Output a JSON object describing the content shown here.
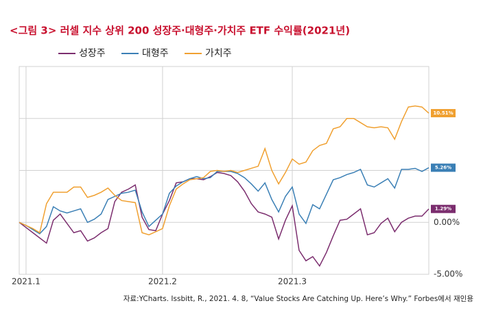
{
  "chart_data": {
    "type": "line",
    "title": "<그림 3> 러셀 지수 상위 200 성장주·대형주·가치주 ETF 수익률(2021년)",
    "source": "자료:YCharts. Issbitt, R., 2021. 4. 8, “Value Stocks Are Catching Up. Here’s  Why.” Forbes에서 재인용",
    "categories": [
      null,
      "2021.1",
      null,
      null,
      null,
      null,
      null,
      null,
      null,
      null,
      null,
      null,
      null,
      null,
      null,
      null,
      null,
      null,
      null,
      null,
      null,
      "2021.2",
      null,
      null,
      null,
      null,
      null,
      null,
      null,
      null,
      null,
      null,
      null,
      null,
      null,
      null,
      null,
      null,
      null,
      null,
      "2021.3",
      null,
      null,
      null,
      null,
      null,
      null,
      null,
      null,
      null,
      null,
      null,
      null,
      null,
      null,
      null,
      null,
      null,
      null,
      null,
      null
    ],
    "ylim": [
      -5,
      15
    ],
    "yticks": [
      {
        "value": -5,
        "label": "-5.00%"
      },
      {
        "value": 0,
        "label": "0.00%"
      }
    ],
    "ygrid": [
      5,
      10
    ],
    "grid": true,
    "series": [
      {
        "name": "성장주",
        "color": "#7b2d6e",
        "values": [
          0,
          -0.5,
          -1.0,
          -1.5,
          -2.0,
          0.2,
          0.8,
          -0.1,
          -1.0,
          -0.8,
          -1.8,
          -1.5,
          -1.0,
          -0.6,
          2.0,
          2.9,
          3.2,
          3.6,
          0.5,
          -0.7,
          -0.8,
          0.8,
          2.1,
          3.8,
          3.9,
          4.2,
          4.2,
          4.1,
          4.4,
          4.8,
          4.7,
          4.5,
          3.9,
          3.0,
          1.8,
          1.0,
          0.8,
          0.5,
          -1.6,
          0.2,
          1.6,
          -2.7,
          -3.7,
          -3.3,
          -4.2,
          -2.9,
          -1.3,
          0.2,
          0.3,
          0.8,
          1.3,
          -1.2,
          -1.0,
          -0.1,
          0.4,
          -0.9,
          0.0,
          0.4,
          0.6,
          0.6,
          1.29
        ],
        "value_labels": [
          null,
          null,
          null,
          null,
          null,
          null,
          null,
          null,
          null,
          null,
          null,
          null,
          null,
          null,
          null,
          null,
          null,
          null,
          null,
          null,
          null,
          null,
          null,
          null,
          null,
          null,
          null,
          null,
          null,
          null,
          null,
          null,
          null,
          null,
          null,
          null,
          null,
          null,
          null,
          null,
          null,
          null,
          null,
          null,
          null,
          null,
          null,
          null,
          null,
          null,
          null,
          null,
          null,
          null,
          null,
          null,
          null,
          null,
          null,
          null,
          "1.29%"
        ]
      },
      {
        "name": "대형주",
        "color": "#3a7fb5",
        "values": [
          0,
          -0.3,
          -0.7,
          -1.1,
          -0.4,
          1.5,
          1.1,
          0.9,
          1.1,
          1.3,
          0,
          0.3,
          0.8,
          2.2,
          2.5,
          2.8,
          2.9,
          3.1,
          1.0,
          -0.4,
          0.2,
          0.8,
          2.8,
          3.5,
          3.9,
          4.2,
          4.4,
          4.2,
          4.3,
          4.9,
          4.9,
          4.9,
          4.7,
          4.3,
          3.7,
          3.0,
          3.8,
          2.2,
          1.0,
          2.5,
          3.4,
          0.8,
          -0.1,
          1.7,
          1.3,
          2.7,
          4.1,
          4.3,
          4.6,
          4.8,
          5.1,
          3.6,
          3.4,
          3.8,
          4.2,
          3.3,
          5.1,
          5.1,
          5.2,
          4.9,
          5.26
        ],
        "value_labels": [
          null,
          null,
          null,
          null,
          null,
          null,
          null,
          null,
          null,
          null,
          null,
          null,
          null,
          null,
          null,
          null,
          null,
          null,
          null,
          null,
          null,
          null,
          null,
          null,
          null,
          null,
          null,
          null,
          null,
          null,
          null,
          null,
          null,
          null,
          null,
          null,
          null,
          null,
          null,
          null,
          null,
          null,
          null,
          null,
          null,
          null,
          null,
          null,
          null,
          null,
          null,
          null,
          null,
          null,
          null,
          null,
          null,
          null,
          null,
          null,
          "5.26%"
        ]
      },
      {
        "name": "가치주",
        "color": "#f0a030",
        "values": [
          0,
          -0.3,
          -0.6,
          -1.0,
          1.8,
          2.9,
          2.9,
          2.9,
          3.4,
          3.4,
          2.4,
          2.6,
          2.9,
          3.3,
          2.6,
          2.1,
          2.0,
          1.9,
          -1.0,
          -1.2,
          -0.9,
          -0.6,
          1.6,
          3.2,
          3.7,
          4.1,
          4.2,
          4.3,
          4.9,
          5.0,
          4.9,
          5.0,
          4.8,
          5.0,
          5.2,
          5.4,
          7.1,
          5.0,
          3.7,
          4.8,
          6.1,
          5.6,
          5.8,
          6.9,
          7.4,
          7.6,
          9.0,
          9.2,
          10.0,
          10.0,
          9.6,
          9.2,
          9.1,
          9.2,
          9.1,
          8.0,
          9.7,
          11.1,
          11.2,
          11.1,
          10.51
        ],
        "value_labels": [
          null,
          null,
          null,
          null,
          null,
          null,
          null,
          null,
          null,
          null,
          null,
          null,
          null,
          null,
          null,
          null,
          null,
          null,
          null,
          null,
          null,
          null,
          null,
          null,
          null,
          null,
          null,
          null,
          null,
          null,
          null,
          null,
          null,
          null,
          null,
          null,
          null,
          null,
          null,
          null,
          null,
          null,
          null,
          null,
          null,
          null,
          null,
          null,
          null,
          null,
          null,
          null,
          null,
          null,
          null,
          null,
          null,
          null,
          null,
          null,
          "10.51%"
        ]
      }
    ]
  }
}
